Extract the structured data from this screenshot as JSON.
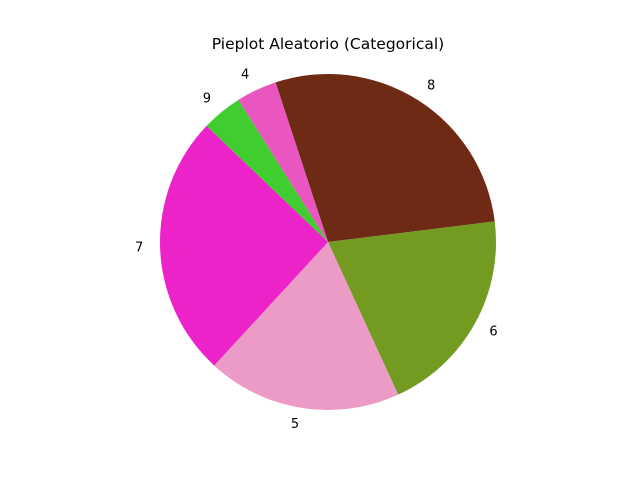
{
  "chart_data": {
    "type": "pie",
    "title": "Pieplot Aleatorio (Categorical)",
    "slices": [
      {
        "label": "8",
        "value": 28.1,
        "color": "#6e2a14"
      },
      {
        "label": "6",
        "value": 20.1,
        "color": "#739a21"
      },
      {
        "label": "5",
        "value": 18.7,
        "color": "#ec9bc6"
      },
      {
        "label": "7",
        "value": 25.3,
        "color": "#ec23c9"
      },
      {
        "label": "9",
        "value": 3.9,
        "color": "#40cd2f"
      },
      {
        "label": "4",
        "value": 3.9,
        "color": "#ea56bf"
      }
    ],
    "start_angle_deg": 108.2,
    "direction": "clockwise",
    "legend": "none"
  }
}
